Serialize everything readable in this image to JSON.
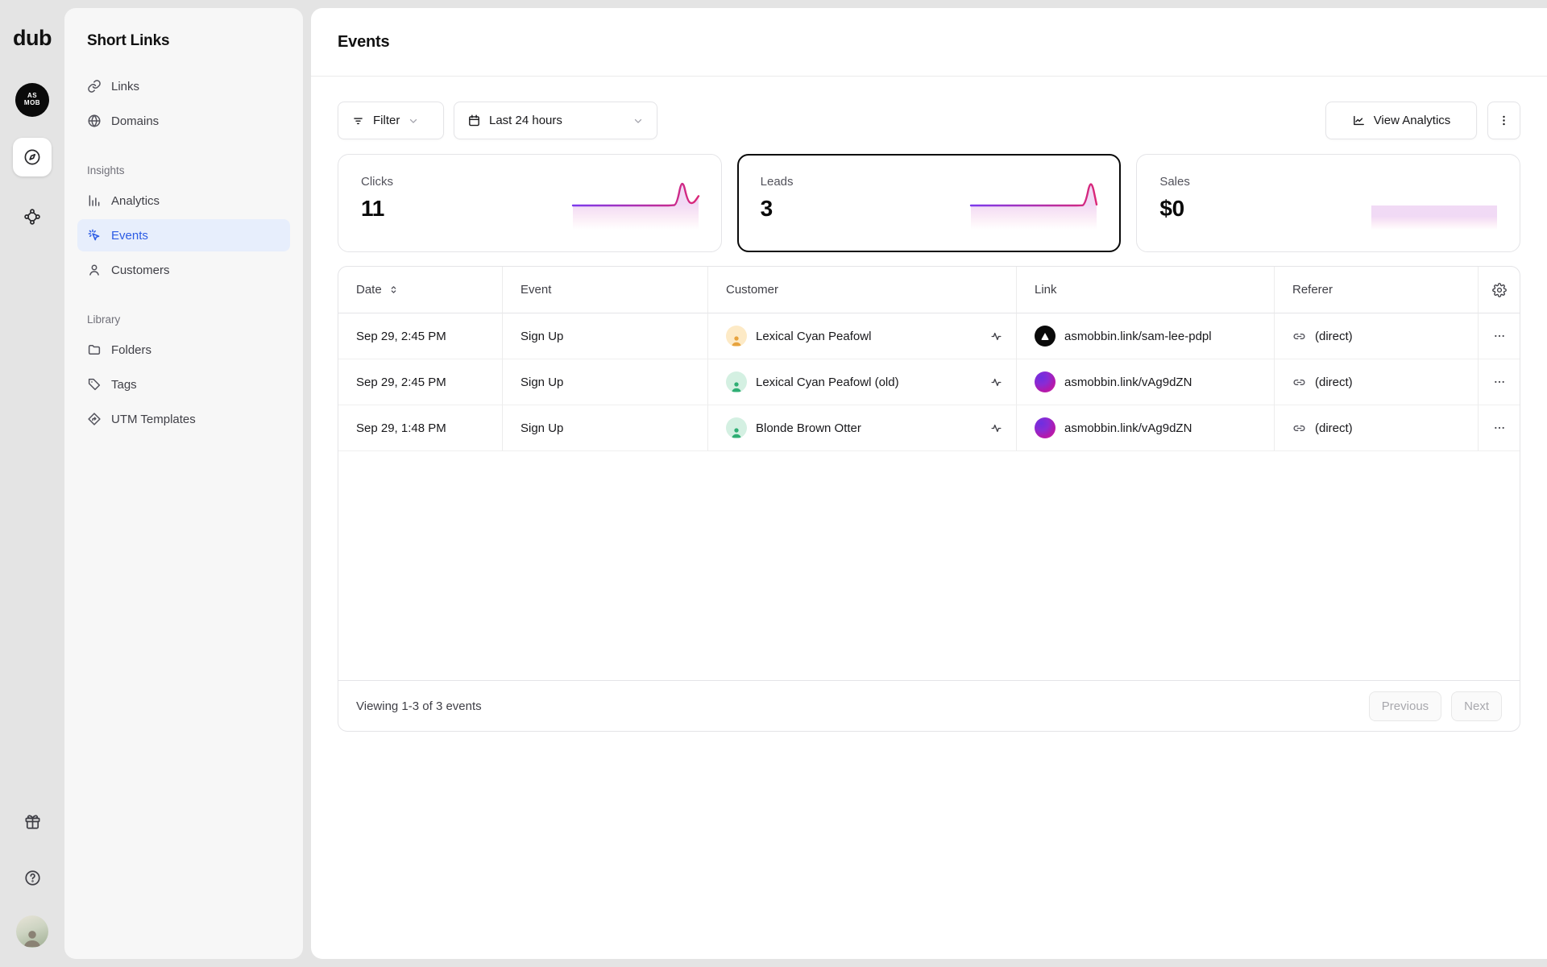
{
  "brand": {
    "logo": "dub",
    "workspace_badge_line1": "AS",
    "workspace_badge_line2": "MOB"
  },
  "sidebar": {
    "title": "Short Links",
    "items": [
      {
        "label": "Links"
      },
      {
        "label": "Domains"
      },
      {
        "label": "Analytics"
      },
      {
        "label": "Events"
      },
      {
        "label": "Customers"
      },
      {
        "label": "Folders"
      },
      {
        "label": "Tags"
      },
      {
        "label": "UTM Templates"
      }
    ],
    "sections": {
      "insights": "Insights",
      "library": "Library"
    }
  },
  "header": {
    "title": "Events"
  },
  "toolbar": {
    "filter_label": "Filter",
    "date_range_value": "Last 24 hours",
    "view_analytics_label": "View Analytics"
  },
  "stats": [
    {
      "label": "Clicks",
      "value": "11",
      "selected": false
    },
    {
      "label": "Leads",
      "value": "3",
      "selected": true
    },
    {
      "label": "Sales",
      "value": "$0",
      "selected": false
    }
  ],
  "chart_data": [
    {
      "type": "area",
      "title": "Clicks sparkline",
      "x_range": "Last 24 hours",
      "total": 11,
      "values": [
        0,
        0,
        0,
        0,
        0,
        0,
        0,
        0,
        0,
        0,
        0,
        0,
        0,
        0,
        0,
        0,
        0,
        0,
        0,
        0.2,
        9,
        1.2,
        0.5,
        3
      ],
      "ymax": 9,
      "grid": false,
      "stroke_gradient": [
        "#7c3aed",
        "#db2777"
      ],
      "fill": "rgba(190,85,210,0.22)"
    },
    {
      "type": "area",
      "title": "Leads sparkline",
      "x_range": "Last 24 hours",
      "total": 3,
      "values": [
        0,
        0,
        0,
        0,
        0,
        0,
        0,
        0,
        0,
        0,
        0,
        0,
        0,
        0,
        0,
        0,
        0,
        0,
        0,
        0,
        0.1,
        9,
        0.3
      ],
      "ymax": 9,
      "grid": false,
      "stroke_gradient": [
        "#7c3aed",
        "#db2777"
      ],
      "fill": "rgba(190,85,210,0.22)"
    },
    {
      "type": "area",
      "title": "Sales sparkline",
      "x_range": "Last 24 hours",
      "total": 0,
      "values": [
        0,
        0,
        0,
        0,
        0,
        0,
        0,
        0,
        0,
        0,
        0,
        0,
        0,
        0,
        0,
        0,
        0,
        0,
        0,
        0,
        0,
        0,
        0,
        0
      ],
      "ymax": 9,
      "grid": false,
      "stroke_gradient": [
        "#7c3aed",
        "#db2777"
      ],
      "fill": "rgba(190,85,210,0.22)"
    }
  ],
  "table": {
    "columns": {
      "date": "Date",
      "event": "Event",
      "customer": "Customer",
      "link": "Link",
      "referer": "Referer"
    },
    "rows": [
      {
        "date": "Sep 29, 2:45 PM",
        "event": "Sign Up",
        "customer": "Lexical Cyan Peafowl",
        "avatar_variant": "amber",
        "link": "asmobbin.link/sam-lee-pdpl",
        "favicon_variant": "dark",
        "referer": "(direct)"
      },
      {
        "date": "Sep 29, 2:45 PM",
        "event": "Sign Up",
        "customer": "Lexical Cyan Peafowl (old)",
        "avatar_variant": "green",
        "link": "asmobbin.link/vAg9dZN",
        "favicon_variant": "gradient",
        "referer": "(direct)"
      },
      {
        "date": "Sep 29, 1:48 PM",
        "event": "Sign Up",
        "customer": "Blonde Brown Otter",
        "avatar_variant": "green",
        "link": "asmobbin.link/vAg9dZN",
        "favicon_variant": "gradient",
        "referer": "(direct)"
      }
    ]
  },
  "footer": {
    "summary": "Viewing 1-3 of 3 events",
    "previous_label": "Previous",
    "next_label": "Next"
  },
  "colors": {
    "accent_blue": "#2b5be4",
    "accent_blue_bg": "#e7eefc",
    "selected_card_border": "#0a0a0a",
    "spark_purple": "#7c3aed",
    "spark_pink": "#db2777",
    "page_bg": "#e4e4e4",
    "sidebar_bg": "#f7f7f7"
  }
}
